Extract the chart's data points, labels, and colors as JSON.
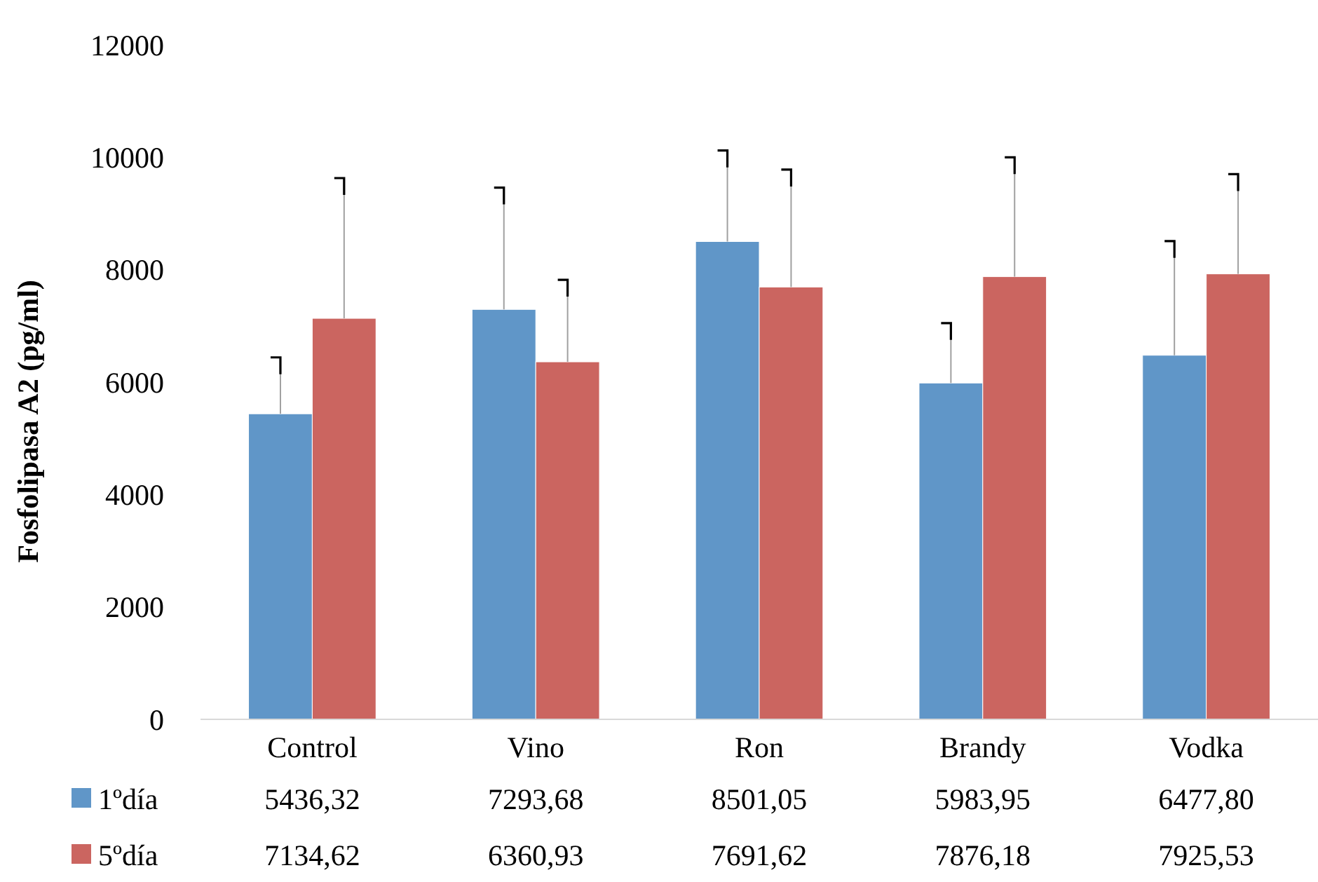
{
  "chart_data": {
    "type": "bar",
    "ylabel": "Fosfolipasa A2 (pg/ml)",
    "categories": [
      "Control",
      "Vino",
      "Ron",
      "Brandy",
      "Vodka"
    ],
    "series": [
      {
        "name": "1ºdía",
        "color": "#6096c8",
        "values": [
          5436.32,
          7293.68,
          8501.05,
          5983.95,
          6477.8
        ],
        "errors": [
          [
            5436.32,
            6440
          ],
          [
            7293.68,
            9460
          ],
          [
            8501.05,
            10120
          ],
          [
            5983.95,
            7050
          ],
          [
            6477.8,
            8510
          ]
        ],
        "value_labels": [
          "5436,32",
          "7293,68",
          "8501,05",
          "5983,95",
          "6477,80"
        ]
      },
      {
        "name": "5ºdía",
        "color": "#cb6560",
        "values": [
          7134.62,
          6360.93,
          7691.62,
          7876.18,
          7925.53
        ],
        "errors": [
          [
            7134.62,
            9630
          ],
          [
            6360.93,
            7820
          ],
          [
            7691.62,
            9780
          ],
          [
            7876.18,
            10000
          ],
          [
            7925.53,
            9700
          ]
        ],
        "value_labels": [
          "7134,62",
          "6360,93",
          "7691,62",
          "7876,18",
          "7925,53"
        ]
      }
    ],
    "ylim": [
      0,
      12000
    ],
    "yticks": [
      0,
      2000,
      4000,
      6000,
      8000,
      10000,
      12000
    ],
    "legend": "bottom"
  }
}
